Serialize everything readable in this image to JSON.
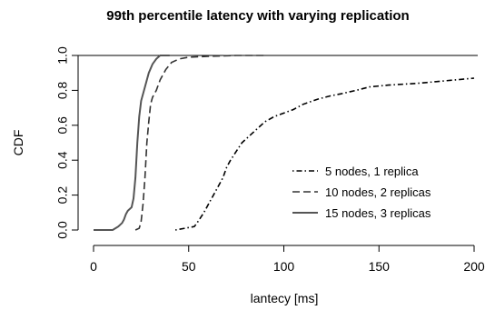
{
  "chart_data": {
    "type": "line",
    "title": "99th percentile latency with varying replication",
    "xlabel": "lantecy [ms]",
    "ylabel": "CDF",
    "xlim": [
      0,
      200
    ],
    "ylim": [
      0,
      1
    ],
    "x_ticks": [
      "0",
      "50",
      "100",
      "150",
      "200"
    ],
    "y_ticks": [
      "0.0",
      "0.2",
      "0.4",
      "0.6",
      "0.8",
      "1.0"
    ],
    "grid": false,
    "legend_position": "bottom-right",
    "series": [
      {
        "name": "5 nodes, 1 replica",
        "line_style": "dotdash",
        "points": [
          [
            43,
            0
          ],
          [
            48,
            0.01
          ],
          [
            53,
            0.02
          ],
          [
            55,
            0.05
          ],
          [
            58,
            0.1
          ],
          [
            60,
            0.14
          ],
          [
            62,
            0.18
          ],
          [
            64,
            0.22
          ],
          [
            66,
            0.26
          ],
          [
            68,
            0.3
          ],
          [
            70,
            0.36
          ],
          [
            72,
            0.4
          ],
          [
            75,
            0.45
          ],
          [
            78,
            0.5
          ],
          [
            82,
            0.54
          ],
          [
            86,
            0.58
          ],
          [
            90,
            0.62
          ],
          [
            95,
            0.65
          ],
          [
            100,
            0.67
          ],
          [
            105,
            0.69
          ],
          [
            110,
            0.72
          ],
          [
            118,
            0.75
          ],
          [
            125,
            0.77
          ],
          [
            130,
            0.78
          ],
          [
            138,
            0.8
          ],
          [
            145,
            0.82
          ],
          [
            155,
            0.83
          ],
          [
            170,
            0.84
          ],
          [
            180,
            0.85
          ],
          [
            190,
            0.86
          ],
          [
            200,
            0.87
          ]
        ]
      },
      {
        "name": "10 nodes, 2 replicas",
        "line_style": "dashed",
        "points": [
          [
            22,
            0
          ],
          [
            24,
            0.01
          ],
          [
            25,
            0.05
          ],
          [
            26,
            0.15
          ],
          [
            27,
            0.3
          ],
          [
            28,
            0.5
          ],
          [
            29,
            0.62
          ],
          [
            30,
            0.72
          ],
          [
            31,
            0.76
          ],
          [
            33,
            0.8
          ],
          [
            35,
            0.86
          ],
          [
            38,
            0.92
          ],
          [
            41,
            0.96
          ],
          [
            45,
            0.98
          ],
          [
            50,
            0.99
          ],
          [
            60,
            0.995
          ],
          [
            75,
            1.0
          ],
          [
            90,
            1.0
          ]
        ]
      },
      {
        "name": "15 nodes, 3 replicas",
        "line_style": "solid",
        "points": [
          [
            0,
            0
          ],
          [
            10,
            0
          ],
          [
            13,
            0.02
          ],
          [
            15,
            0.04
          ],
          [
            16,
            0.06
          ],
          [
            17,
            0.09
          ],
          [
            18,
            0.11
          ],
          [
            20,
            0.13
          ],
          [
            21,
            0.18
          ],
          [
            22,
            0.3
          ],
          [
            23,
            0.5
          ],
          [
            24,
            0.65
          ],
          [
            25,
            0.74
          ],
          [
            27,
            0.82
          ],
          [
            29,
            0.9
          ],
          [
            31,
            0.95
          ],
          [
            33,
            0.98
          ],
          [
            35,
            1.0
          ],
          [
            40,
            1.0
          ]
        ]
      }
    ]
  }
}
